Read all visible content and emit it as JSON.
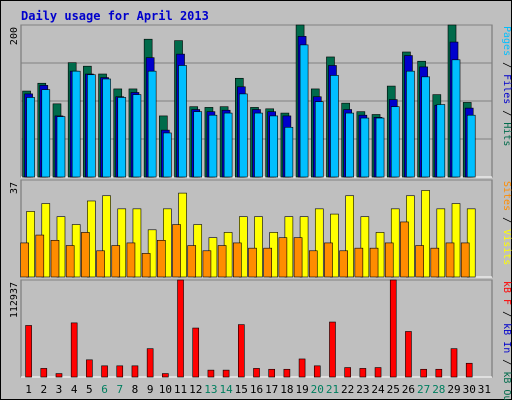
{
  "title": "Daily usage for April 2013",
  "colors": {
    "background": "#bfbfbf",
    "frame_bg": "#e0e0e0",
    "title": "#0000cc",
    "hits": "#006b4b",
    "files": "#0000cc",
    "pages": "#00bfff",
    "visits": "#ffff00",
    "sites": "#ff8c00",
    "kb_in": "#0000cc",
    "kb_out": "#006b4b",
    "kb_f": "#ff0000",
    "weekend": "#007f5f",
    "weekday": "#000000"
  },
  "chart_data": [
    {
      "type": "bar",
      "panel": "hits-files-pages",
      "x": [
        "1",
        "2",
        "3",
        "4",
        "5",
        "6",
        "7",
        "8",
        "9",
        "10",
        "11",
        "12",
        "13",
        "14",
        "15",
        "16",
        "17",
        "18",
        "19",
        "20",
        "21",
        "22",
        "23",
        "24",
        "25",
        "26",
        "27",
        "28",
        "29",
        "30",
        "31"
      ],
      "x_weekend": [
        false,
        false,
        false,
        false,
        false,
        true,
        true,
        false,
        false,
        false,
        false,
        false,
        true,
        true,
        false,
        false,
        false,
        false,
        false,
        true,
        true,
        false,
        false,
        false,
        false,
        false,
        true,
        true,
        false,
        false,
        false
      ],
      "ymax_label": "200",
      "ylim": [
        0,
        214
      ],
      "axis_label_parts": [
        {
          "text": "Pages",
          "color": "#00bfff"
        },
        {
          "text": " / ",
          "color": "#000000"
        },
        {
          "text": "Files",
          "color": "#0000cc"
        },
        {
          "text": " / ",
          "color": "#000000"
        },
        {
          "text": "Hits",
          "color": "#006b4b"
        }
      ],
      "series": [
        {
          "name": "Hits",
          "values": [
            121,
            132,
            103,
            161,
            156,
            145,
            124,
            124,
            194,
            86,
            192,
            99,
            98,
            99,
            139,
            98,
            96,
            90,
            218,
            124,
            169,
            104,
            92,
            88,
            128,
            176,
            163,
            116,
            216,
            105,
            0
          ]
        },
        {
          "name": "Files",
          "values": [
            117,
            129,
            86,
            149,
            145,
            140,
            113,
            119,
            168,
            66,
            173,
            95,
            92,
            94,
            127,
            95,
            92,
            86,
            198,
            113,
            157,
            95,
            87,
            84,
            109,
            171,
            155,
            101,
            190,
            97,
            0
          ]
        },
        {
          "name": "Pages",
          "values": [
            112,
            123,
            85,
            149,
            144,
            138,
            112,
            116,
            149,
            62,
            157,
            92,
            87,
            90,
            117,
            90,
            86,
            70,
            186,
            106,
            143,
            90,
            83,
            83,
            99,
            149,
            141,
            102,
            165,
            87,
            0
          ]
        }
      ]
    },
    {
      "type": "bar",
      "panel": "visits-sites",
      "x": [
        "1",
        "2",
        "3",
        "4",
        "5",
        "6",
        "7",
        "8",
        "9",
        "10",
        "11",
        "12",
        "13",
        "14",
        "15",
        "16",
        "17",
        "18",
        "19",
        "20",
        "21",
        "22",
        "23",
        "24",
        "25",
        "26",
        "27",
        "28",
        "29",
        "30",
        "31"
      ],
      "ymax_label": "37",
      "ylim": [
        0,
        37
      ],
      "axis_label_parts": [
        {
          "text": "Sites",
          "color": "#ff8c00"
        },
        {
          "text": " / ",
          "color": "#000000"
        },
        {
          "text": "Visits",
          "color": "#ffff00"
        }
      ],
      "series": [
        {
          "name": "Visits",
          "values": [
            25,
            28,
            23,
            20,
            29,
            31,
            26,
            26,
            18,
            26,
            32,
            20,
            15,
            17,
            23,
            23,
            17,
            23,
            23,
            26,
            24,
            31,
            23,
            17,
            26,
            31,
            33,
            26,
            28,
            26,
            0
          ]
        },
        {
          "name": "Sites",
          "values": [
            13,
            16,
            14,
            12,
            17,
            10,
            12,
            13,
            9,
            14,
            20,
            12,
            10,
            12,
            13,
            11,
            11,
            15,
            15,
            10,
            13,
            10,
            11,
            11,
            13,
            21,
            12,
            11,
            13,
            13,
            0
          ]
        }
      ]
    },
    {
      "type": "bar",
      "panel": "kbytes",
      "x": [
        "1",
        "2",
        "3",
        "4",
        "5",
        "6",
        "7",
        "8",
        "9",
        "10",
        "11",
        "12",
        "13",
        "14",
        "15",
        "16",
        "17",
        "18",
        "19",
        "20",
        "21",
        "22",
        "23",
        "24",
        "25",
        "26",
        "27",
        "28",
        "29",
        "30",
        "31"
      ],
      "ymax_label": "112937",
      "ylim": [
        0,
        112937
      ],
      "axis_label_parts": [
        {
          "text": "kB F",
          "color": "#ff0000"
        },
        {
          "text": " / ",
          "color": "#000000"
        },
        {
          "text": "kB In",
          "color": "#0000cc"
        },
        {
          "text": " / ",
          "color": "#000000"
        },
        {
          "text": "kB Out",
          "color": "#006b4b"
        }
      ],
      "series": [
        {
          "name": "kB F",
          "values": [
            60000,
            10000,
            4000,
            63000,
            20000,
            13000,
            13000,
            13000,
            33000,
            4000,
            112937,
            57000,
            8000,
            8000,
            61000,
            10000,
            9000,
            9000,
            21000,
            13000,
            64000,
            11000,
            10000,
            11000,
            112937,
            53000,
            9000,
            9000,
            33000,
            16000,
            0
          ]
        }
      ]
    }
  ]
}
